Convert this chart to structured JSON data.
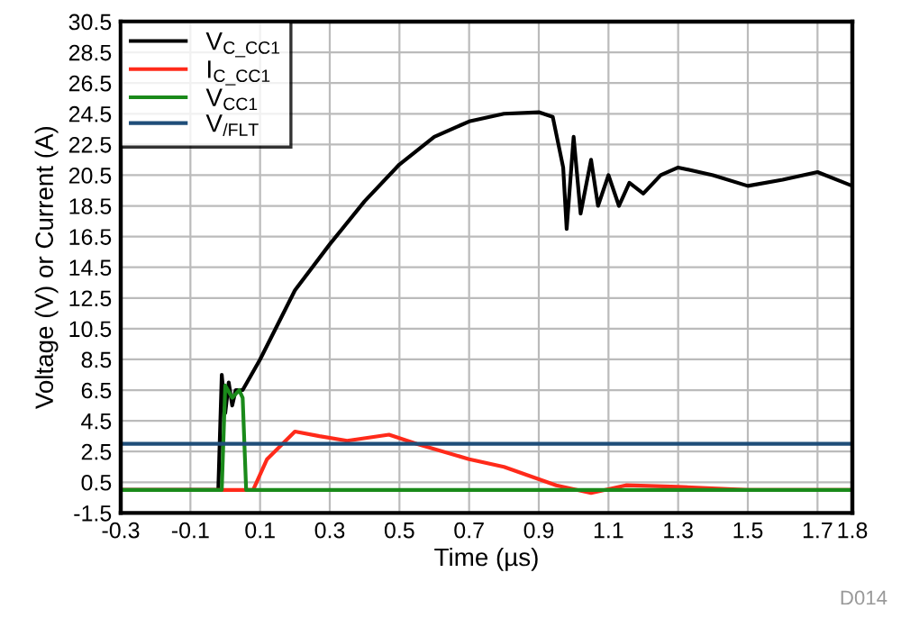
{
  "chart_data": {
    "type": "line",
    "xlabel": "Time (µs)",
    "ylabel": "Voltage (V) or Current (A)",
    "xlim": [
      -0.3,
      1.8
    ],
    "xticks": [
      -0.3,
      -0.1,
      0.1,
      0.3,
      0.5,
      0.7,
      0.9,
      1.1,
      1.3,
      1.5,
      1.7,
      1.8
    ],
    "ylim": [
      -1.5,
      30.5
    ],
    "yticks": [
      -1.5,
      0.5,
      2.5,
      4.5,
      6.5,
      8.5,
      10.5,
      12.5,
      14.5,
      16.5,
      18.5,
      20.5,
      22.5,
      24.5,
      26.5,
      28.5,
      30.5
    ],
    "grid": true,
    "legend": "top left",
    "annotations": [
      "D014"
    ],
    "series": [
      {
        "name": "V$_{C_CC1}$",
        "color": "#000000",
        "x": [
          -0.3,
          -0.1,
          -0.02,
          -0.01,
          0.0,
          0.01,
          0.02,
          0.03,
          0.05,
          0.1,
          0.2,
          0.3,
          0.4,
          0.5,
          0.6,
          0.7,
          0.8,
          0.9,
          0.94,
          0.97,
          0.98,
          1.0,
          1.02,
          1.05,
          1.07,
          1.1,
          1.13,
          1.16,
          1.2,
          1.25,
          1.3,
          1.4,
          1.5,
          1.6,
          1.7,
          1.8
        ],
        "values": [
          0.0,
          0.0,
          0.0,
          7.5,
          5.0,
          7.0,
          5.5,
          6.5,
          6.5,
          8.5,
          13.0,
          16.0,
          18.8,
          21.2,
          23.0,
          24.0,
          24.5,
          24.6,
          24.3,
          21.0,
          17.0,
          23.0,
          18.0,
          21.5,
          18.5,
          20.5,
          18.5,
          20.0,
          19.3,
          20.5,
          21.0,
          20.5,
          19.8,
          20.2,
          20.7,
          19.8
        ]
      },
      {
        "name": "I$_{C_CC1}$",
        "color": "#ff2a1a",
        "x": [
          -0.3,
          0.08,
          0.12,
          0.2,
          0.27,
          0.35,
          0.47,
          0.55,
          0.7,
          0.8,
          0.95,
          1.05,
          1.15,
          1.3,
          1.5,
          1.8
        ],
        "values": [
          0.0,
          0.0,
          2.0,
          3.8,
          3.5,
          3.2,
          3.6,
          3.0,
          2.0,
          1.5,
          0.3,
          -0.2,
          0.3,
          0.2,
          0.0,
          0.0
        ]
      },
      {
        "name": "V$_{CC1}$",
        "color": "#1a8a1a",
        "x": [
          -0.3,
          -0.01,
          0.0,
          0.02,
          0.04,
          0.05,
          0.06,
          1.8
        ],
        "values": [
          0.0,
          0.0,
          6.8,
          6.0,
          6.5,
          6.0,
          0.0,
          0.0
        ]
      },
      {
        "name": "V$_{/FLT}$",
        "color": "#1f4e79",
        "x": [
          -0.3,
          1.8
        ],
        "values": [
          3.0,
          3.0
        ]
      }
    ]
  }
}
